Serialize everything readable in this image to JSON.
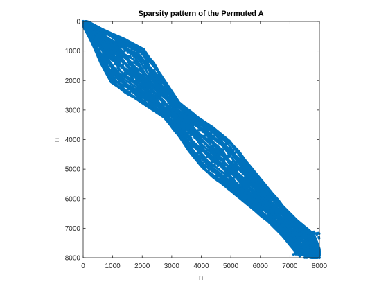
{
  "chart_data": {
    "type": "scatter",
    "title": "Sparsity pattern of the Permuted A",
    "xlabel": "n",
    "ylabel": "n",
    "xlim": [
      0,
      8000
    ],
    "ylim": [
      8000,
      0
    ],
    "y_axis_direction": "reversed",
    "xticks": [
      0,
      1000,
      2000,
      3000,
      4000,
      5000,
      6000,
      7000,
      8000
    ],
    "yticks": [
      0,
      1000,
      2000,
      3000,
      4000,
      5000,
      6000,
      7000,
      8000
    ],
    "grid": false,
    "legend": "none",
    "marker_color": "#0072BD",
    "description": "banded sparse matrix; nonzeros concentrated along the main diagonal",
    "band_profile": {
      "diagonal_position": [
        0,
        500,
        1000,
        1500,
        2000,
        2500,
        3000,
        3500,
        4000,
        4500,
        5000,
        5500,
        6000,
        6500,
        7000,
        7500,
        8000
      ],
      "half_bandwidth": [
        50,
        200,
        400,
        550,
        450,
        350,
        250,
        300,
        400,
        450,
        400,
        350,
        300,
        250,
        250,
        300,
        80
      ]
    }
  }
}
